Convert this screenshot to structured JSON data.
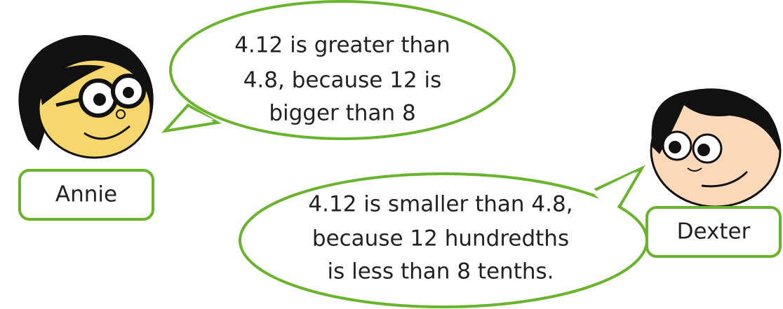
{
  "characters": [
    {
      "name": "Annie",
      "speech": [
        "4.12 is greater than",
        "4.8, because 12 is",
        "bigger than 8"
      ]
    },
    {
      "name": "Dexter",
      "speech": [
        "4.12 is smaller than 4.8,",
        "because 12 hundredths",
        "is less than 8 tenths."
      ]
    }
  ]
}
